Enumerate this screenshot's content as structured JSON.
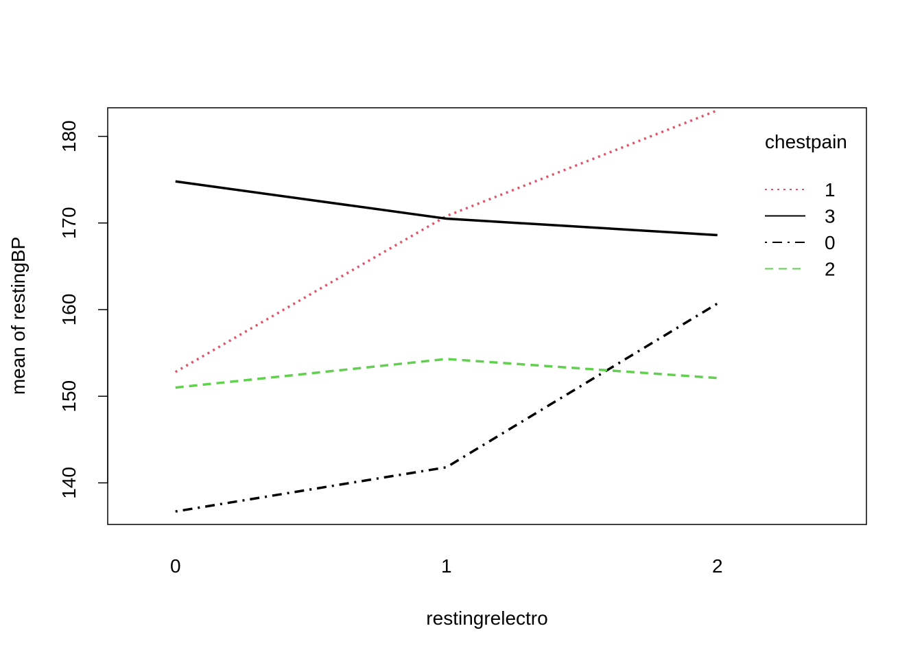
{
  "chart_data": {
    "type": "line",
    "title": "",
    "xlabel": "restingrelectro",
    "ylabel": "mean of  restingBP",
    "categories": [
      "0",
      "1",
      "2"
    ],
    "xlim": [
      -0.25,
      2.55
    ],
    "ylim": [
      135.2,
      183.3
    ],
    "y_ticks": [
      140,
      150,
      160,
      170,
      180
    ],
    "y_tick_labels": [
      "140",
      "150",
      "160",
      "170",
      "180"
    ],
    "legend": {
      "title": "chestpain",
      "position": "top-right"
    },
    "series": [
      {
        "name": "1",
        "values": [
          152.8,
          170.8,
          183.0
        ],
        "color": "#DF536B",
        "style": "dotted"
      },
      {
        "name": "3",
        "values": [
          174.8,
          170.5,
          168.6
        ],
        "color": "#000000",
        "style": "solid"
      },
      {
        "name": "0",
        "values": [
          136.7,
          141.8,
          160.7
        ],
        "color": "#000000",
        "style": "dotdash"
      },
      {
        "name": "2",
        "values": [
          151.0,
          154.3,
          152.1
        ],
        "color": "#61D04F",
        "style": "dashed"
      }
    ]
  }
}
